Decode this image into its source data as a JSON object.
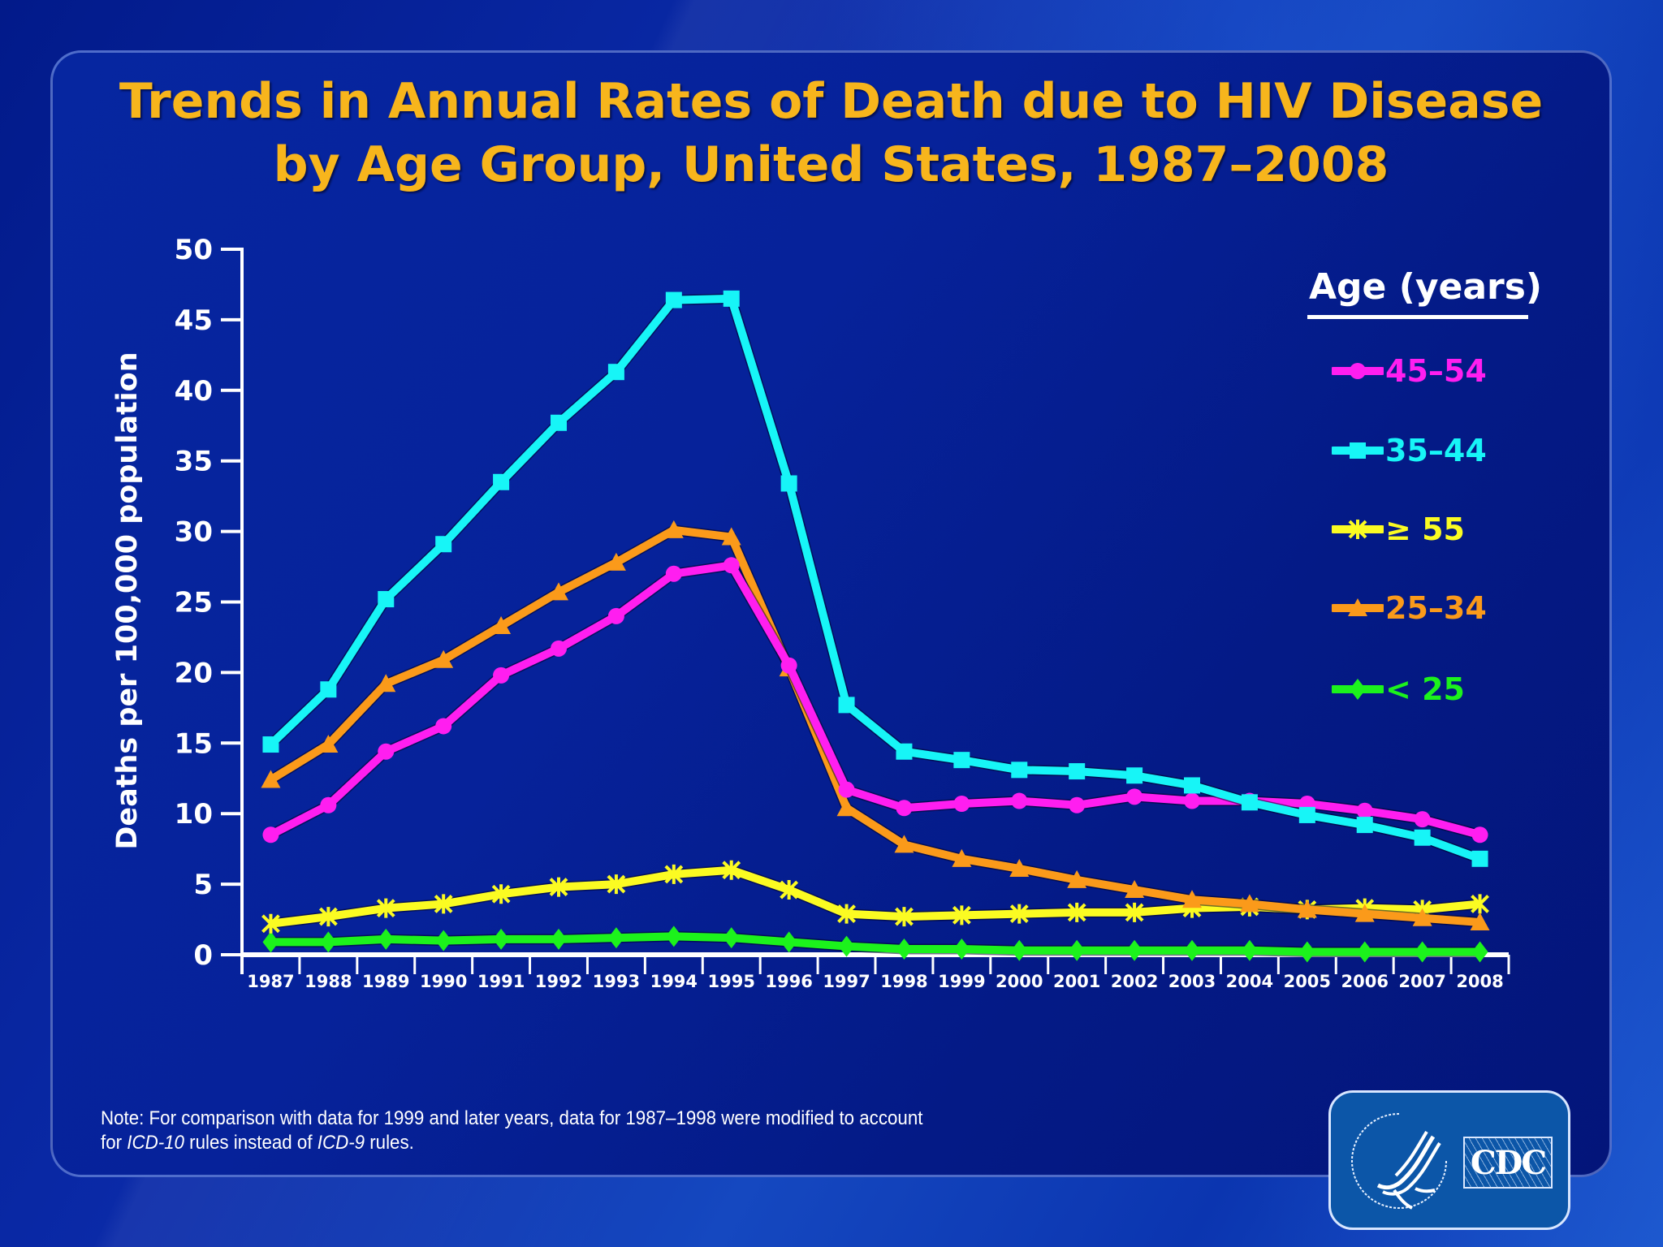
{
  "slide": {
    "title_line1": "Trends in Annual Rates of Death due to HIV Disease",
    "title_line2": "by Age Group, United States, 1987–2008",
    "note_prefix": "Note: For comparison  with data  for 1999 and later years, data for 1987–1998 were modified to account",
    "note_line2_a": "for ",
    "note_line2_icd10": "ICD-10",
    "note_line2_b": " rules  instead  of ",
    "note_line2_icd9": "ICD-9",
    "note_line2_c": " rules.",
    "logo": {
      "agency_label": "CDC",
      "seal_icon": "hhs-eagle-seal-icon"
    }
  },
  "legend": {
    "title": "Age (years)",
    "items": [
      {
        "label": "45–54",
        "color": "#ff1ef0",
        "marker": "circle"
      },
      {
        "label": "35–44",
        "color": "#17f5f7",
        "marker": "square"
      },
      {
        "label": "≥ 55",
        "color": "#fbfb22",
        "marker": "asterisk"
      },
      {
        "label": "25–34",
        "color": "#fb9a1a",
        "marker": "triangle"
      },
      {
        "label": "< 25",
        "color": "#1cf21c",
        "marker": "diamond"
      }
    ]
  },
  "chart_data": {
    "type": "line",
    "title": "Trends in Annual Rates of Death due to HIV Disease by Age Group, United States, 1987–2008",
    "xlabel": "",
    "ylabel": "Deaths per 100,000 population",
    "ylim": [
      0,
      50
    ],
    "yticks": [
      0,
      5,
      10,
      15,
      20,
      25,
      30,
      35,
      40,
      45,
      50
    ],
    "grid": false,
    "legend_position": "top-right",
    "x": [
      "1987",
      "1988",
      "1989",
      "1990",
      "1991",
      "1992",
      "1993",
      "1994",
      "1995",
      "1996",
      "1997",
      "1998",
      "1999",
      "2000",
      "2001",
      "2002",
      "2003",
      "2004",
      "2005",
      "2006",
      "2007",
      "2008"
    ],
    "series": [
      {
        "name": "45–54",
        "color": "#ff1ef0",
        "marker": "circle",
        "values": [
          8.5,
          10.6,
          14.4,
          16.2,
          19.8,
          21.7,
          24.0,
          27.0,
          27.6,
          20.5,
          11.7,
          10.4,
          10.7,
          10.9,
          10.6,
          11.2,
          10.9,
          10.9,
          10.7,
          10.2,
          9.6,
          8.5
        ]
      },
      {
        "name": "35–44",
        "color": "#17f5f7",
        "marker": "square",
        "values": [
          14.9,
          18.8,
          25.2,
          29.1,
          33.5,
          37.7,
          41.3,
          46.4,
          46.5,
          33.4,
          17.7,
          14.4,
          13.8,
          13.1,
          13.0,
          12.7,
          12.0,
          10.8,
          9.9,
          9.2,
          8.3,
          6.8
        ]
      },
      {
        "name": "≥ 55",
        "color": "#fbfb22",
        "marker": "asterisk",
        "values": [
          2.2,
          2.7,
          3.3,
          3.6,
          4.3,
          4.8,
          5.0,
          5.7,
          6.0,
          4.6,
          2.9,
          2.7,
          2.8,
          2.9,
          3.0,
          3.0,
          3.3,
          3.4,
          3.2,
          3.3,
          3.2,
          3.6
        ]
      },
      {
        "name": "25–34",
        "color": "#fb9a1a",
        "marker": "triangle",
        "values": [
          12.4,
          14.9,
          19.2,
          20.9,
          23.3,
          25.7,
          27.8,
          30.1,
          29.6,
          20.3,
          10.4,
          7.8,
          6.8,
          6.1,
          5.3,
          4.6,
          3.9,
          3.6,
          3.2,
          2.9,
          2.6,
          2.3
        ]
      },
      {
        "name": "< 25",
        "color": "#1cf21c",
        "marker": "diamond",
        "values": [
          0.9,
          0.9,
          1.1,
          1.0,
          1.1,
          1.1,
          1.2,
          1.3,
          1.2,
          0.9,
          0.6,
          0.4,
          0.4,
          0.3,
          0.3,
          0.3,
          0.3,
          0.3,
          0.2,
          0.2,
          0.2,
          0.2
        ]
      }
    ]
  }
}
